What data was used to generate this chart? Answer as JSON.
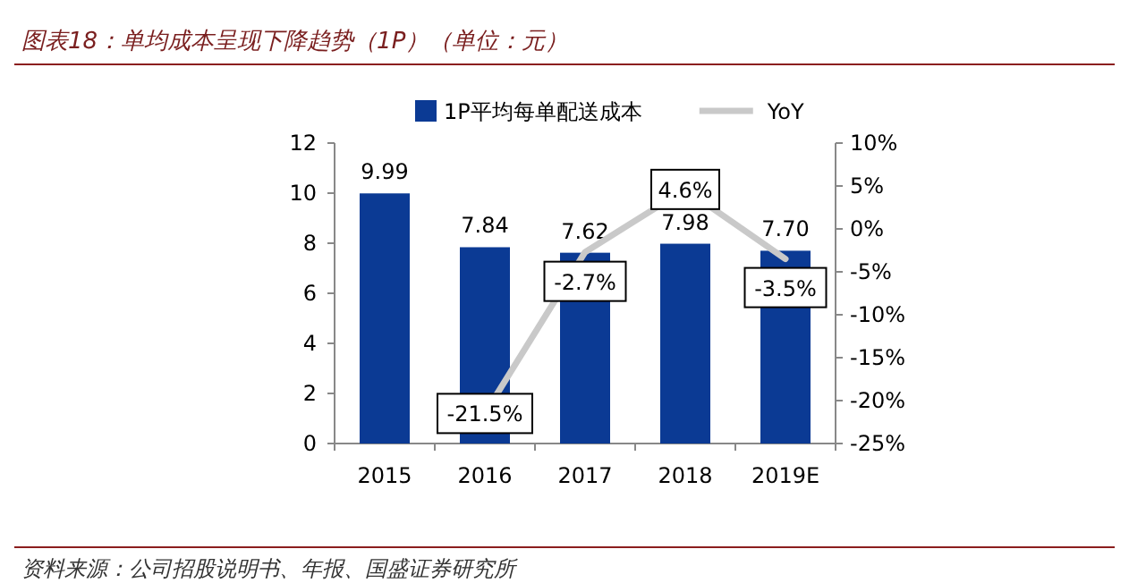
{
  "chart_data": {
    "type": "bar",
    "title": "图表18：单均成本呈现下降趋势（1P）（单位：元）",
    "annotations": [
      "资料来源：公司招股说明书、年报、国盛证券研究所"
    ],
    "categories": [
      "2015",
      "2016",
      "2017",
      "2018",
      "2019E"
    ],
    "series": [
      {
        "name": "1P平均每单配送成本",
        "color": "#0b3a94",
        "values": [
          9.99,
          7.84,
          7.62,
          7.98,
          7.7
        ],
        "value_labels": [
          "9.99",
          "7.84",
          "7.62",
          "7.98",
          "7.70"
        ]
      },
      {
        "name": "YoY",
        "type": "line",
        "axis": "y2",
        "color": "#c9c9c9",
        "values": [
          null,
          -21.5,
          -2.7,
          4.6,
          -3.5
        ],
        "value_labels": [
          null,
          "-21.5%",
          "-2.7%",
          "4.6%",
          "-3.5%"
        ]
      }
    ],
    "ylim": [
      0,
      12
    ],
    "yticks": [
      0,
      2,
      4,
      6,
      8,
      10,
      12
    ],
    "y2lim": [
      -25,
      10
    ],
    "y2ticks": [
      {
        "value": -25,
        "label": "-25%"
      },
      {
        "value": -20,
        "label": "-20%"
      },
      {
        "value": -15,
        "label": "-15%"
      },
      {
        "value": -10,
        "label": "-10%"
      },
      {
        "value": -5,
        "label": "-5%"
      },
      {
        "value": 0,
        "label": "0%"
      },
      {
        "value": 5,
        "label": "5%"
      },
      {
        "value": 10,
        "label": "10%"
      }
    ],
    "legend": "top",
    "grid": false
  }
}
